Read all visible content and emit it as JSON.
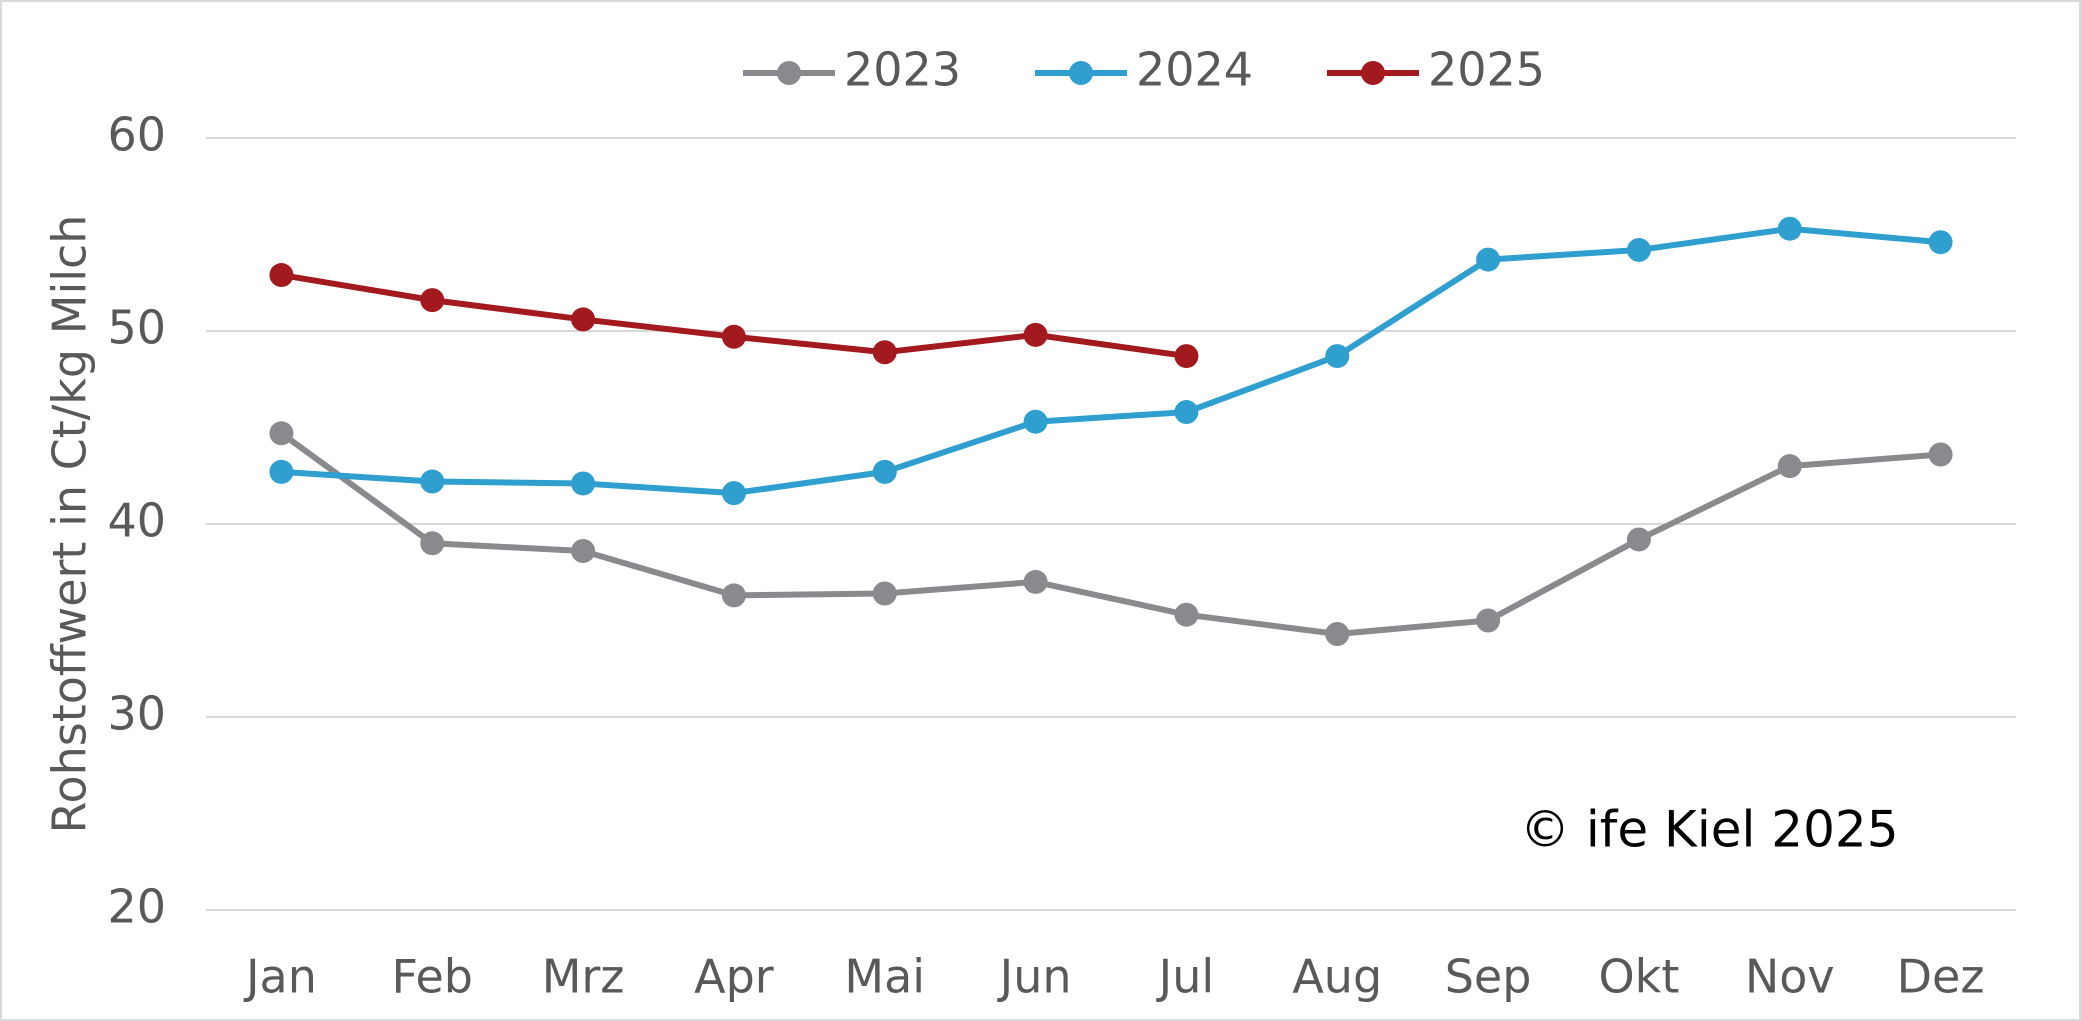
{
  "chart_data": {
    "type": "line",
    "y_label": "Rohstoffwert in Ct/kg Milch",
    "annotation": "© ife Kiel 2025",
    "categories": [
      "Jan",
      "Feb",
      "Mrz",
      "Apr",
      "Mai",
      "Jun",
      "Jul",
      "Aug",
      "Sep",
      "Okt",
      "Nov",
      "Dez"
    ],
    "series": [
      {
        "name": "2023",
        "color": "#8a8a8e",
        "values": [
          44.7,
          39.0,
          38.6,
          36.3,
          36.4,
          37.0,
          35.3,
          34.3,
          35.0,
          39.2,
          43.0,
          43.6
        ]
      },
      {
        "name": "2024",
        "color": "#2e9fcf",
        "values": [
          42.7,
          42.2,
          42.1,
          41.6,
          42.7,
          45.3,
          45.8,
          48.7,
          53.7,
          54.2,
          55.3,
          54.6
        ]
      },
      {
        "name": "2025",
        "color": "#a31a1e",
        "values": [
          52.9,
          51.6,
          50.6,
          49.7,
          48.9,
          49.8,
          48.7,
          null,
          null,
          null,
          null,
          null
        ]
      }
    ],
    "ylim": [
      20,
      60
    ],
    "yticks": [
      20,
      30,
      40,
      50,
      60
    ],
    "grid": true,
    "legend": "top"
  }
}
